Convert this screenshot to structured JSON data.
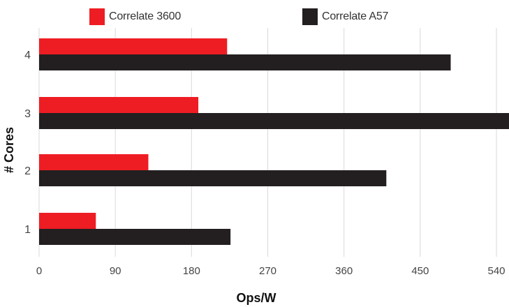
{
  "chart_data": {
    "type": "bar",
    "orientation": "horizontal",
    "categories": [
      "4",
      "3",
      "2",
      "1"
    ],
    "series": [
      {
        "name": "Correlate 3600",
        "color": "#ee1d23",
        "values": [
          222,
          188,
          129,
          67
        ]
      },
      {
        "name": "Correlate A57",
        "color": "#231f20",
        "values": [
          486,
          557,
          410,
          226
        ]
      }
    ],
    "xlabel": "Ops/W",
    "ylabel": "# Cores",
    "xticks": [
      0,
      90,
      180,
      270,
      360,
      450,
      540
    ],
    "xlim": [
      0,
      555
    ],
    "grid": true,
    "legend_position": "top"
  }
}
